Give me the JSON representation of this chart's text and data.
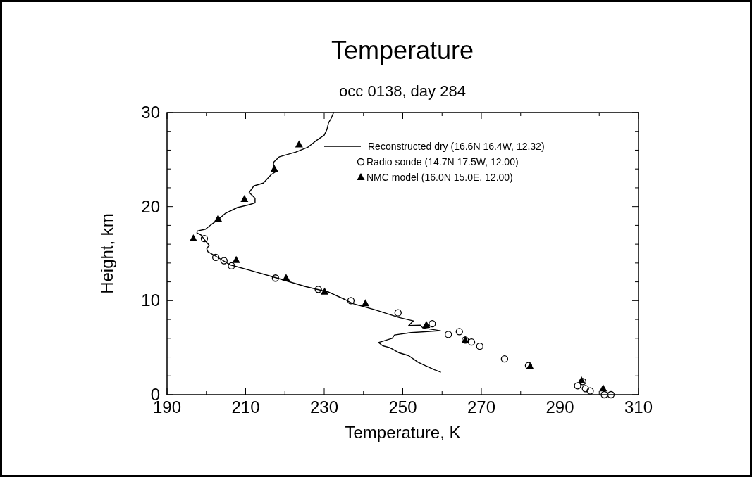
{
  "chart_data": {
    "type": "line",
    "title": "Temperature",
    "subtitle": "occ 0138, day 284",
    "xlabel": "Temperature, K",
    "ylabel": "Height, km",
    "xlim": [
      190,
      310
    ],
    "ylim": [
      0,
      30
    ],
    "xticks": [
      190,
      {
        "value": 200,
        "label": null
      },
      210,
      {
        "value": 220,
        "label": null
      },
      230,
      {
        "value": 240,
        "label": null
      },
      250,
      {
        "value": 260,
        "label": null
      },
      270,
      {
        "value": 280,
        "label": null
      },
      290,
      {
        "value": 300,
        "label": null
      },
      310
    ],
    "yticks": [
      0,
      {
        "value": 2,
        "label": null
      },
      {
        "value": 4,
        "label": null
      },
      {
        "value": 6,
        "label": null
      },
      {
        "value": 8,
        "label": null
      },
      10,
      {
        "value": 12,
        "label": null
      },
      {
        "value": 14,
        "label": null
      },
      {
        "value": 16,
        "label": null
      },
      {
        "value": 18,
        "label": null
      },
      20,
      {
        "value": 22,
        "label": null
      },
      {
        "value": 24,
        "label": null
      },
      {
        "value": 26,
        "label": null
      },
      {
        "value": 28,
        "label": null
      },
      30
    ],
    "grid": false,
    "legend": "top right",
    "series": [
      {
        "name": "Reconstructed dry (16.6N 16.4W, 12.32)",
        "marker": "none",
        "line_style": "solid",
        "color": "#000000",
        "x": [
          232.4,
          231.8,
          231.1,
          230.7,
          230.0,
          227.6,
          225.8,
          222.8,
          218.6,
          217.1,
          217.1,
          218.0,
          216.5,
          214.5,
          212.1,
          210.9,
          212.4,
          212.4,
          210.9,
          207.9,
          204.9,
          203.1,
          201.3,
          199.8,
          197.7,
          197.6,
          198.6,
          199.5,
          200.7,
          200.1,
          200.4,
          202.5,
          206.1,
          210.9,
          218.0,
          225.2,
          231.2,
          235.4,
          237.2,
          243.1,
          249.1,
          252.7,
          251.5,
          254.5,
          255.1,
          259.6,
          252.1,
          247.9,
          247.3,
          243.8,
          244.9,
          246.7,
          249.1,
          251.5,
          253.9,
          255.7,
          258.1,
          259.6
        ],
        "values": [
          30,
          29.4,
          28.9,
          28.2,
          27.6,
          26.9,
          26.3,
          25.8,
          25.3,
          24.7,
          24.4,
          23.8,
          23.4,
          22.5,
          22.2,
          21.5,
          20.9,
          20.4,
          20.2,
          19.9,
          19.3,
          18.65,
          18.1,
          17.6,
          17.4,
          17.2,
          17.0,
          16.5,
          15.9,
          15.5,
          15.2,
          14.7,
          13.8,
          13.25,
          12.4,
          11.5,
          10.9,
          10.1,
          9.7,
          9.0,
          8.2,
          7.85,
          7.35,
          7.4,
          7.1,
          6.8,
          6.6,
          6.35,
          6.0,
          5.55,
          5.2,
          5.0,
          4.45,
          4.15,
          3.45,
          3.1,
          2.65,
          2.4
        ]
      },
      {
        "name": "Radio sonde (14.7N 17.5W, 12.00)",
        "type": "scatter",
        "marker": "circle",
        "color": "#000000",
        "x": [
          199.5,
          202.4,
          204.5,
          206.4,
          217.6,
          228.5,
          236.8,
          248.8,
          257.5,
          261.6,
          264.4,
          265.9,
          267.5,
          269.6,
          275.9,
          282.0,
          294.5,
          295.8,
          296.5,
          297.7,
          301.3,
          303.0
        ],
        "values": [
          16.6,
          14.6,
          14.25,
          13.7,
          12.4,
          11.2,
          10.0,
          8.7,
          7.55,
          6.4,
          6.7,
          5.8,
          5.6,
          5.15,
          3.8,
          3.1,
          0.95,
          1.4,
          0.65,
          0.4,
          0,
          0
        ]
      },
      {
        "name": "NMC model (16.0N 15.0E, 12.00)",
        "type": "scatter",
        "marker": "triangle",
        "color": "#000000",
        "x": [
          223.6,
          217.3,
          209.7,
          203.0,
          196.7,
          207.6,
          220.3,
          230.1,
          240.5,
          256.0,
          265.9,
          282.4,
          295.5,
          301.0
        ],
        "values": [
          26.6,
          24.0,
          20.8,
          18.7,
          16.6,
          14.3,
          12.4,
          10.95,
          9.7,
          7.4,
          5.8,
          3.0,
          1.5,
          0.65
        ]
      }
    ]
  }
}
